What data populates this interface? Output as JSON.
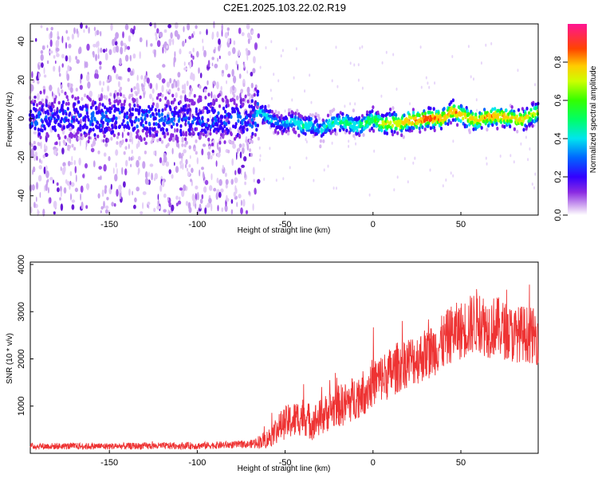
{
  "title": "C2E1.2025.103.22.02.R19",
  "chart_data": [
    {
      "type": "heatmap",
      "xlabel": "Height of straight line (km)",
      "ylabel": "Frequency (Hz)",
      "xlim": [
        -195,
        94
      ],
      "ylim": [
        -50,
        49
      ],
      "xticks": [
        -150,
        -100,
        -50,
        0,
        50
      ],
      "yticks": [
        -40,
        -20,
        0,
        20,
        40
      ],
      "colorbar": {
        "label": "Normalized spectral amplitude",
        "range": [
          0,
          1
        ],
        "ticks": [
          0.0,
          0.2,
          0.4,
          0.6,
          0.8
        ]
      },
      "ridge": {
        "x": [
          -195,
          -150,
          -100,
          -70,
          -65,
          -60,
          -55,
          -50,
          -45,
          -40,
          -35,
          -30,
          -25,
          -20,
          -15,
          -10,
          -5,
          0,
          5,
          10,
          15,
          20,
          25,
          30,
          35,
          40,
          45,
          50,
          55,
          60,
          65,
          70,
          75,
          80,
          85,
          90,
          94
        ],
        "y": [
          0,
          0,
          0,
          0,
          4,
          1,
          -2,
          -3,
          -1,
          -4,
          -3,
          -6,
          -3,
          -2,
          -2,
          -4,
          -3,
          0,
          -3,
          -2,
          -3,
          -1,
          -1,
          0,
          0,
          0,
          4,
          2,
          0,
          -1,
          1,
          1,
          1,
          0,
          -1,
          2,
          3
        ],
        "amplitude": [
          0.3,
          0.3,
          0.3,
          0.3,
          0.45,
          0.45,
          0.35,
          0.4,
          0.45,
          0.5,
          0.45,
          0.4,
          0.5,
          0.5,
          0.55,
          0.5,
          0.55,
          0.6,
          0.75,
          0.8,
          0.8,
          0.85,
          0.9,
          0.9,
          0.9,
          0.85,
          0.85,
          0.85,
          0.8,
          0.8,
          0.85,
          0.85,
          0.85,
          0.8,
          0.8,
          0.75,
          0.7
        ]
      },
      "noise_region": {
        "x_from": -195,
        "x_to": -65,
        "y_spread": 49
      }
    },
    {
      "type": "line",
      "xlabel": "Height of straight line (km)",
      "ylabel": "SNR (10 * v/v)",
      "xlim": [
        -195,
        94
      ],
      "ylim": [
        0,
        4050
      ],
      "xticks": [
        -150,
        -100,
        -50,
        0,
        50
      ],
      "yticks": [
        1000,
        2000,
        3000,
        4000
      ],
      "series": [
        {
          "color": "#ee3333",
          "x": [
            -195,
            -150,
            -100,
            -70,
            -60,
            -55,
            -50,
            -45,
            -40,
            -35,
            -30,
            -25,
            -20,
            -15,
            -10,
            -5,
            0,
            5,
            10,
            15,
            20,
            25,
            30,
            35,
            40,
            45,
            50,
            55,
            60,
            65,
            70,
            75,
            80,
            85,
            90,
            94
          ],
          "values": [
            150,
            150,
            160,
            190,
            300,
            500,
            650,
            700,
            800,
            650,
            750,
            900,
            1000,
            1050,
            1200,
            1300,
            1500,
            1600,
            1700,
            1850,
            1950,
            2000,
            2100,
            2200,
            2350,
            2550,
            2600,
            2700,
            2850,
            2650,
            2700,
            2600,
            2500,
            2550,
            2500,
            2450
          ],
          "noise": [
            70,
            70,
            75,
            80,
            200,
            300,
            350,
            400,
            400,
            380,
            400,
            420,
            450,
            470,
            480,
            500,
            520,
            520,
            550,
            550,
            550,
            550,
            560,
            560,
            600,
            620,
            620,
            650,
            700,
            650,
            650,
            620,
            600,
            600,
            600,
            580
          ]
        }
      ]
    }
  ]
}
